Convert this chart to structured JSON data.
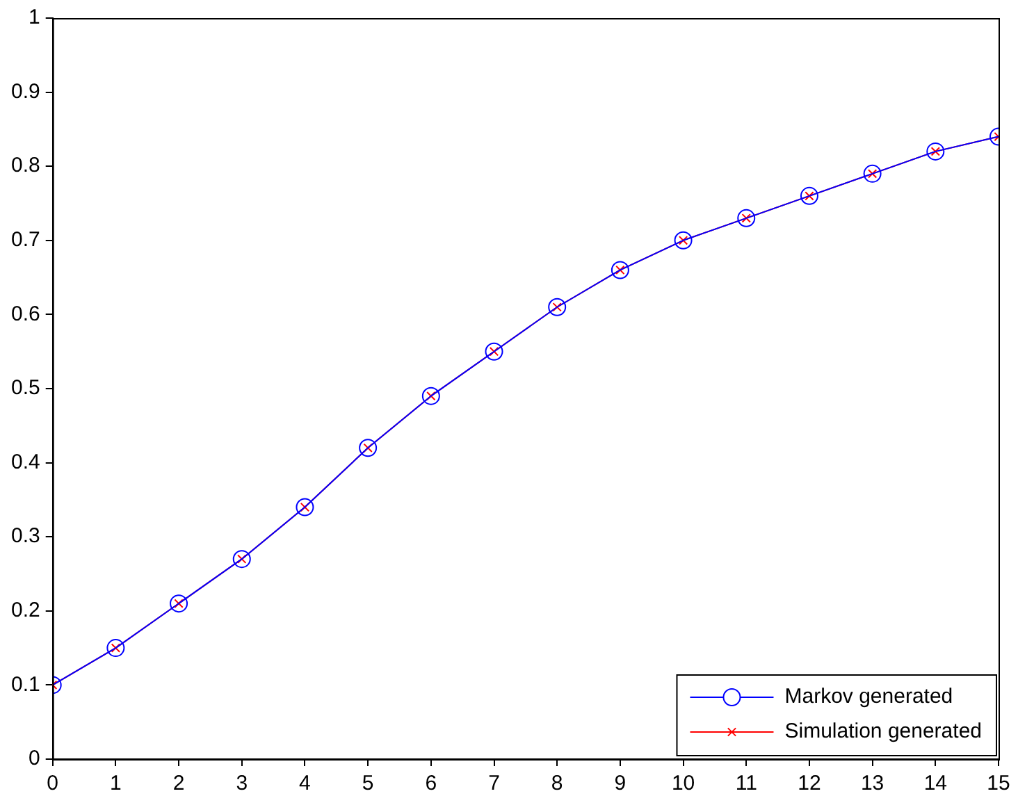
{
  "chart_data": {
    "type": "line",
    "x": [
      0,
      1,
      2,
      3,
      4,
      5,
      6,
      7,
      8,
      9,
      10,
      11,
      12,
      13,
      14,
      15
    ],
    "series": [
      {
        "name": "Markov generated",
        "color": "#0000ff",
        "marker": "circle",
        "values": [
          0.1,
          0.15,
          0.21,
          0.27,
          0.34,
          0.42,
          0.49,
          0.55,
          0.61,
          0.66,
          0.7,
          0.73,
          0.76,
          0.79,
          0.82,
          0.84
        ]
      },
      {
        "name": "Simulation generated",
        "color": "#ff0000",
        "marker": "cross",
        "values": [
          0.1,
          0.15,
          0.21,
          0.27,
          0.34,
          0.42,
          0.49,
          0.55,
          0.61,
          0.66,
          0.7,
          0.73,
          0.76,
          0.79,
          0.82,
          0.84
        ]
      }
    ],
    "xlim": [
      0,
      15
    ],
    "xticks": [
      0,
      1,
      2,
      3,
      4,
      5,
      6,
      7,
      8,
      9,
      10,
      11,
      12,
      13,
      14,
      15
    ],
    "ylim": [
      0,
      1
    ],
    "yticks": [
      0,
      0.1,
      0.2,
      0.3,
      0.4,
      0.5,
      0.6,
      0.7,
      0.8,
      0.9,
      1
    ],
    "grid": false,
    "legend": "bottom right",
    "line_style": "solid"
  }
}
